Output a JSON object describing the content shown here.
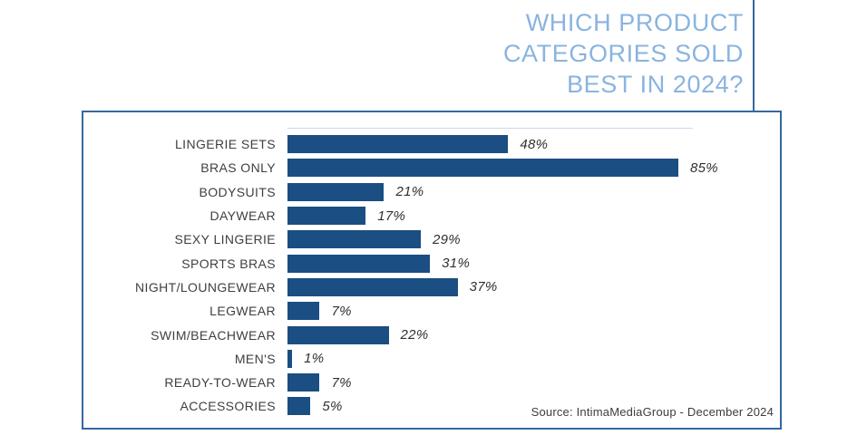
{
  "title": {
    "lines": [
      "WHICH PRODUCT",
      "CATEGORIES SOLD",
      "BEST IN 2024?"
    ]
  },
  "source": "Source: IntimaMediaGroup - December 2024",
  "colors": {
    "bar": "#1b4e82",
    "accent_border": "#35689e",
    "title_text": "#89b4e0",
    "label_text": "#3f3f3f",
    "value_text": "#303030"
  },
  "chart_data": {
    "type": "bar",
    "orientation": "horizontal",
    "title": "WHICH PRODUCT CATEGORIES SOLD BEST IN 2024?",
    "categories": [
      "LINGERIE SETS",
      "BRAS ONLY",
      "BODYSUITS",
      "DAYWEAR",
      "SEXY LINGERIE",
      "SPORTS BRAS",
      "NIGHT/LOUNGEWEAR",
      "LEGWEAR",
      "SWIM/BEACHWEAR",
      "MEN'S",
      "READY-TO-WEAR",
      "ACCESSORIES"
    ],
    "values": [
      48,
      85,
      21,
      17,
      29,
      31,
      37,
      7,
      22,
      1,
      7,
      5
    ],
    "value_labels": [
      "48%",
      "85%",
      "21%",
      "17%",
      "29%",
      "31%",
      "37%",
      "7%",
      "22%",
      "1%",
      "7%",
      "5%"
    ],
    "xlabel": "",
    "ylabel": "",
    "xlim": [
      0,
      100
    ],
    "grid": false,
    "legend": null,
    "caption": "Source: IntimaMediaGroup - December 2024"
  }
}
